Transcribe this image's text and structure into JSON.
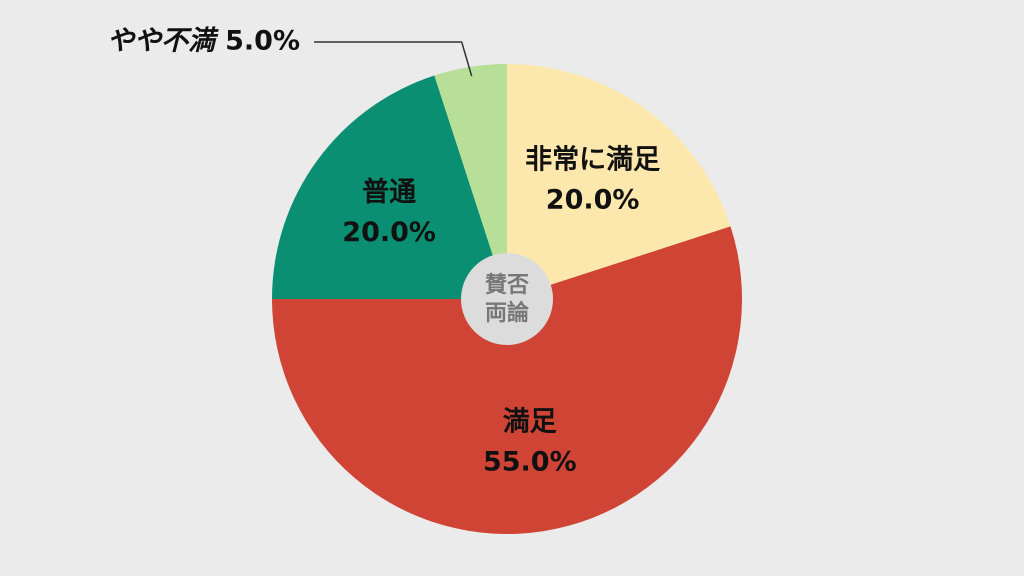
{
  "chart_data": {
    "type": "pie",
    "categories": [
      "非常に満足",
      "満足",
      "普通",
      "やや不満"
    ],
    "values": [
      20,
      55,
      20,
      5
    ],
    "value_labels": [
      "20.0%",
      "55.0%",
      "20.0%",
      "5.0%"
    ],
    "colors": [
      "#fce8ad",
      "#d04436",
      "#0a8f72",
      "#b8df98"
    ],
    "label_colors": [
      "#111111",
      "#111111",
      "#111111",
      "#111111"
    ],
    "center_label": [
      "賛否",
      "両論"
    ]
  }
}
